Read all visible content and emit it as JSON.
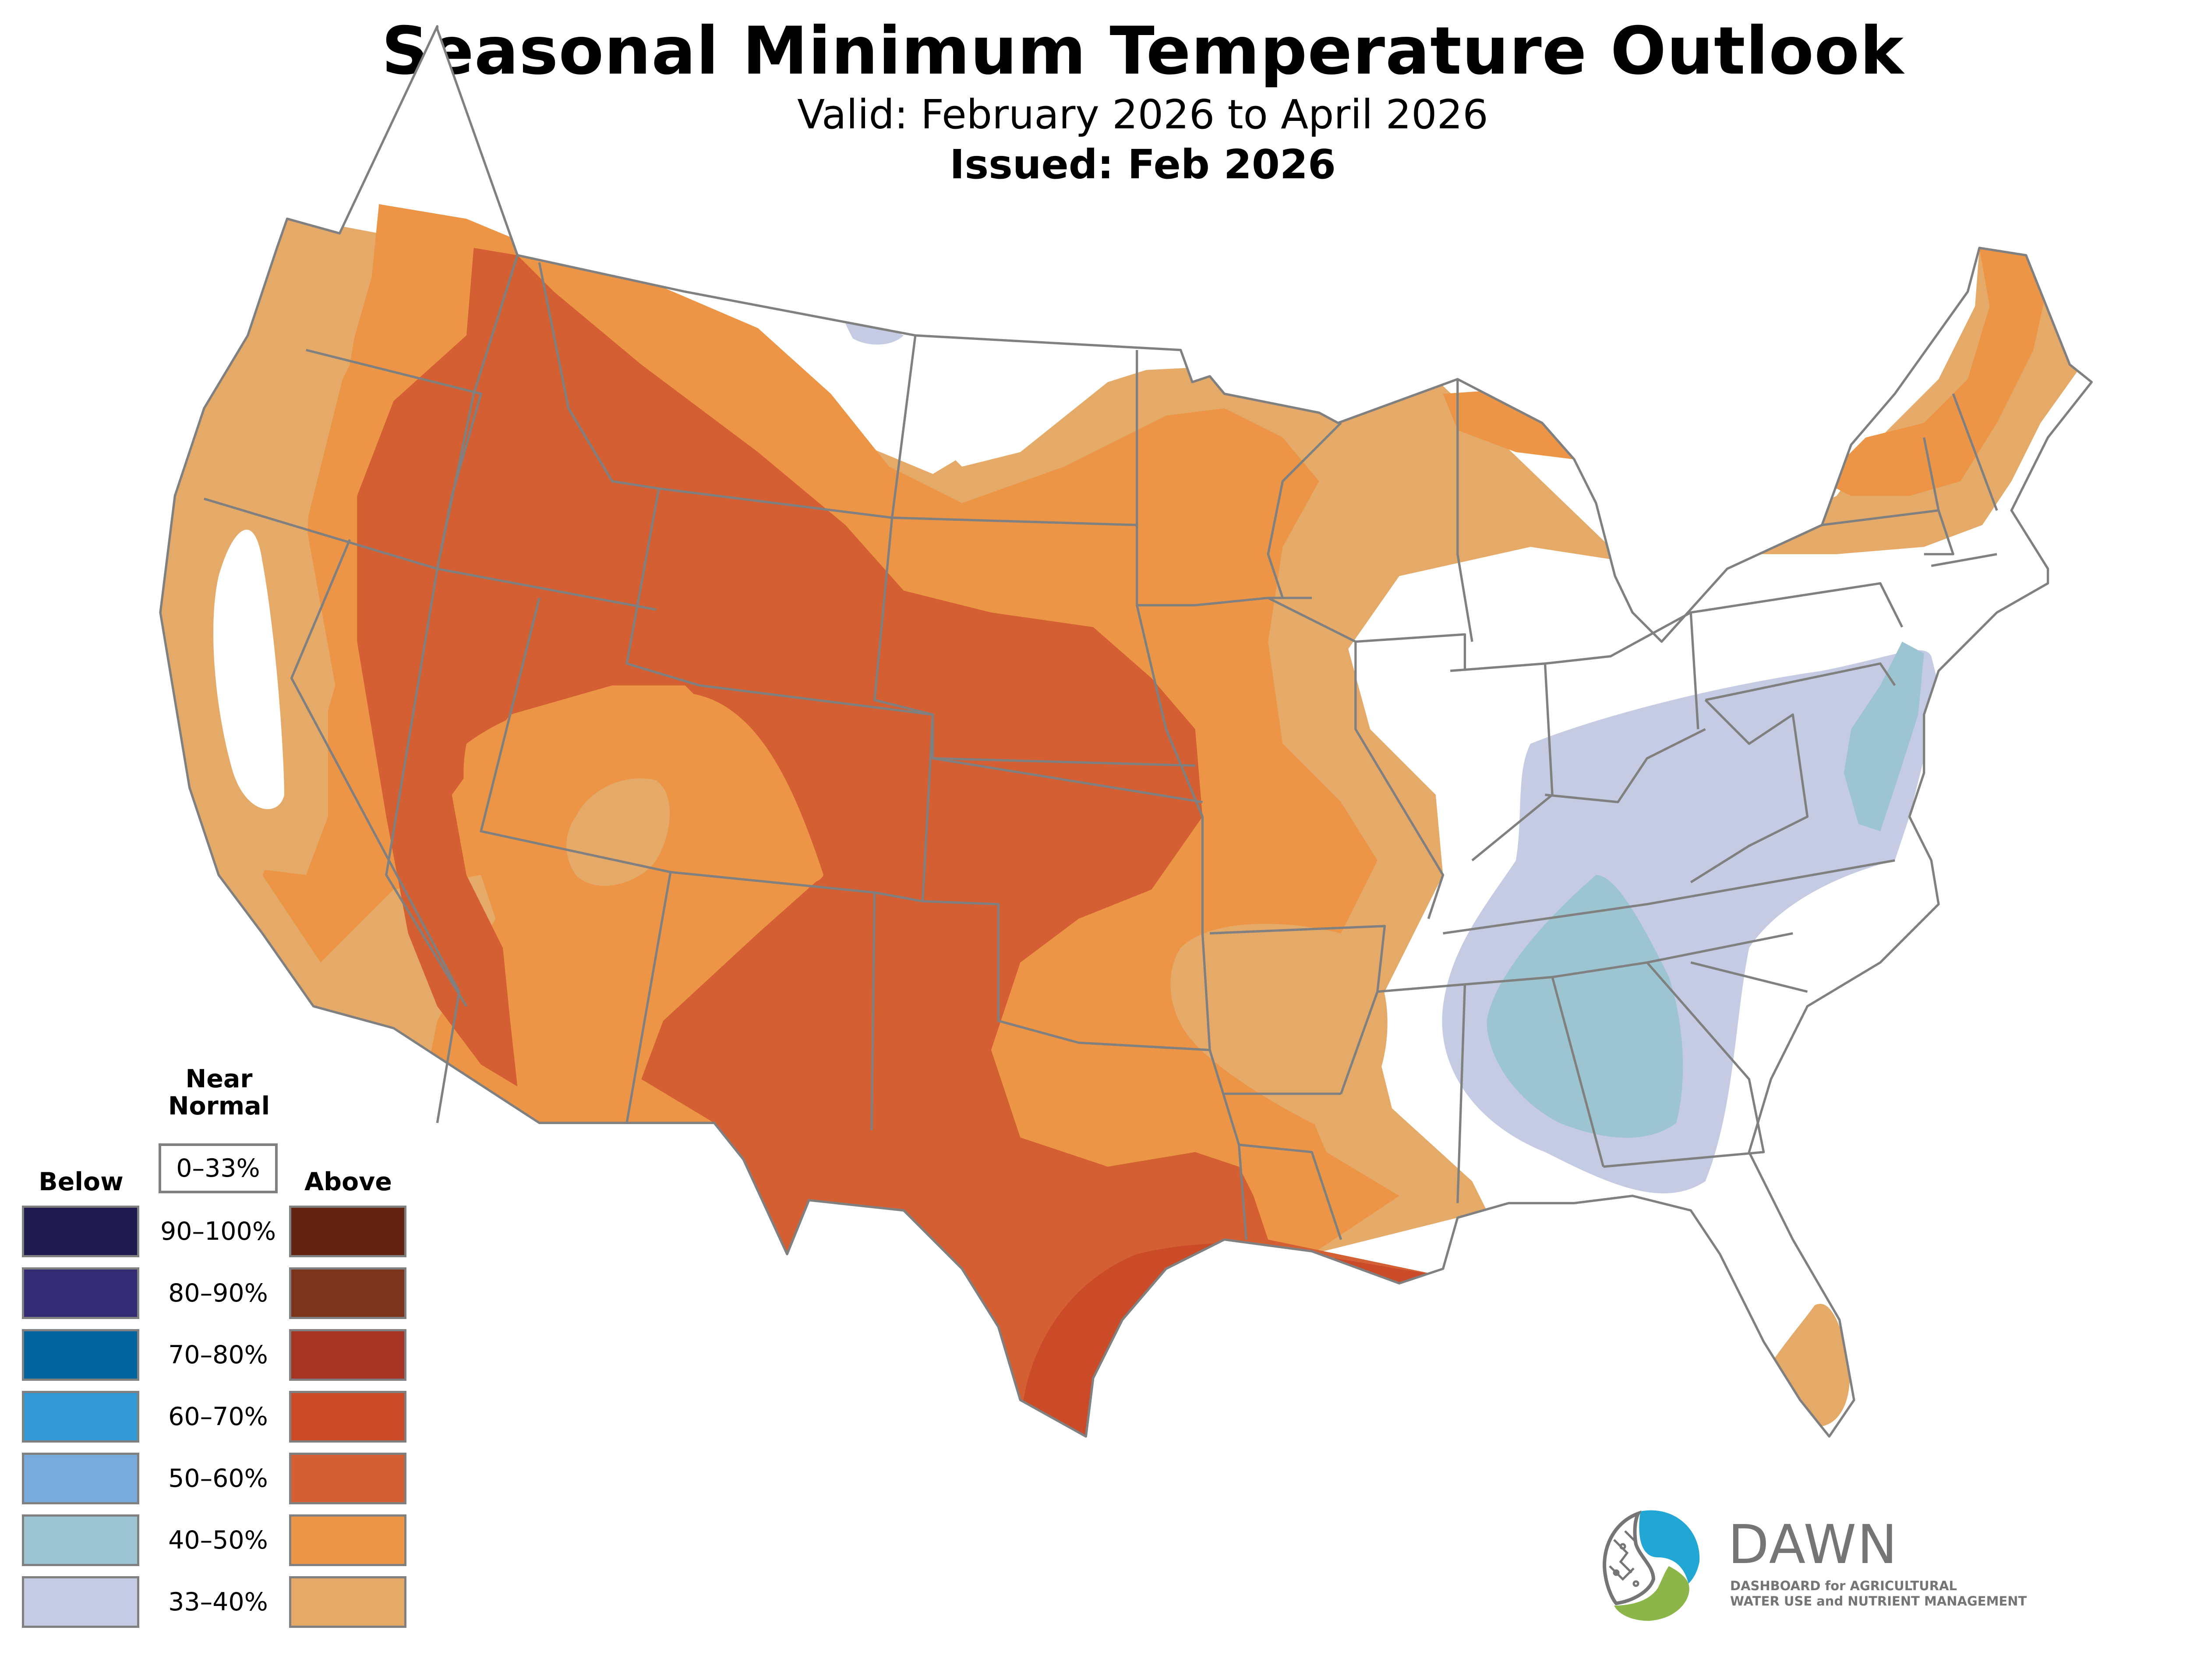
{
  "header": {
    "title": "Seasonal Minimum Temperature Outlook",
    "valid": "Valid: February 2026 to April 2026",
    "issued": "Issued: Feb 2026"
  },
  "legend": {
    "near_normal_label_line1": "Near",
    "near_normal_label_line2": "Normal",
    "near_normal_range": "0–33%",
    "below_label": "Below",
    "above_label": "Above",
    "rows": [
      {
        "range": "90–100%",
        "below_color": "#1f1a4f",
        "above_color": "#632310"
      },
      {
        "range": "80–90%",
        "below_color": "#332c74",
        "above_color": "#7d341c"
      },
      {
        "range": "70–80%",
        "below_color": "#02649d",
        "above_color": "#a43424"
      },
      {
        "range": "60–70%",
        "below_color": "#3399d4",
        "above_color": "#cb4a27"
      },
      {
        "range": "50–60%",
        "below_color": "#78aadb",
        "above_color": "#d35f32"
      },
      {
        "range": "40–50%",
        "below_color": "#9cc4d1",
        "above_color": "#ec9546"
      },
      {
        "range": "33–40%",
        "below_color": "#c4cbe3",
        "above_color": "#e6aa68"
      }
    ]
  },
  "map": {
    "region": "Contiguous United States",
    "categories_shown": [
      "Above 33–40%",
      "Above 40–50%",
      "Above 50–60%",
      "Above 60–70%",
      "Below 33–40%",
      "Below 40–50%",
      "Near Normal"
    ],
    "colors": {
      "above_33_40": "#e6aa68",
      "above_40_50": "#ec9546",
      "above_50_60": "#d35f32",
      "above_60_70": "#cb4a27",
      "below_33_40": "#c4cbe3",
      "below_40_50": "#9cc4d1",
      "near_normal": "#ffffff",
      "boundary": "#808080"
    }
  },
  "logo": {
    "name": "DAWN",
    "tagline_line1": "DASHBOARD for AGRICULTURAL",
    "tagline_line2": "WATER USE and NUTRIENT MANAGEMENT",
    "colors": {
      "blue": "#22a6d4",
      "green": "#8db64a",
      "gray": "#757575"
    }
  }
}
